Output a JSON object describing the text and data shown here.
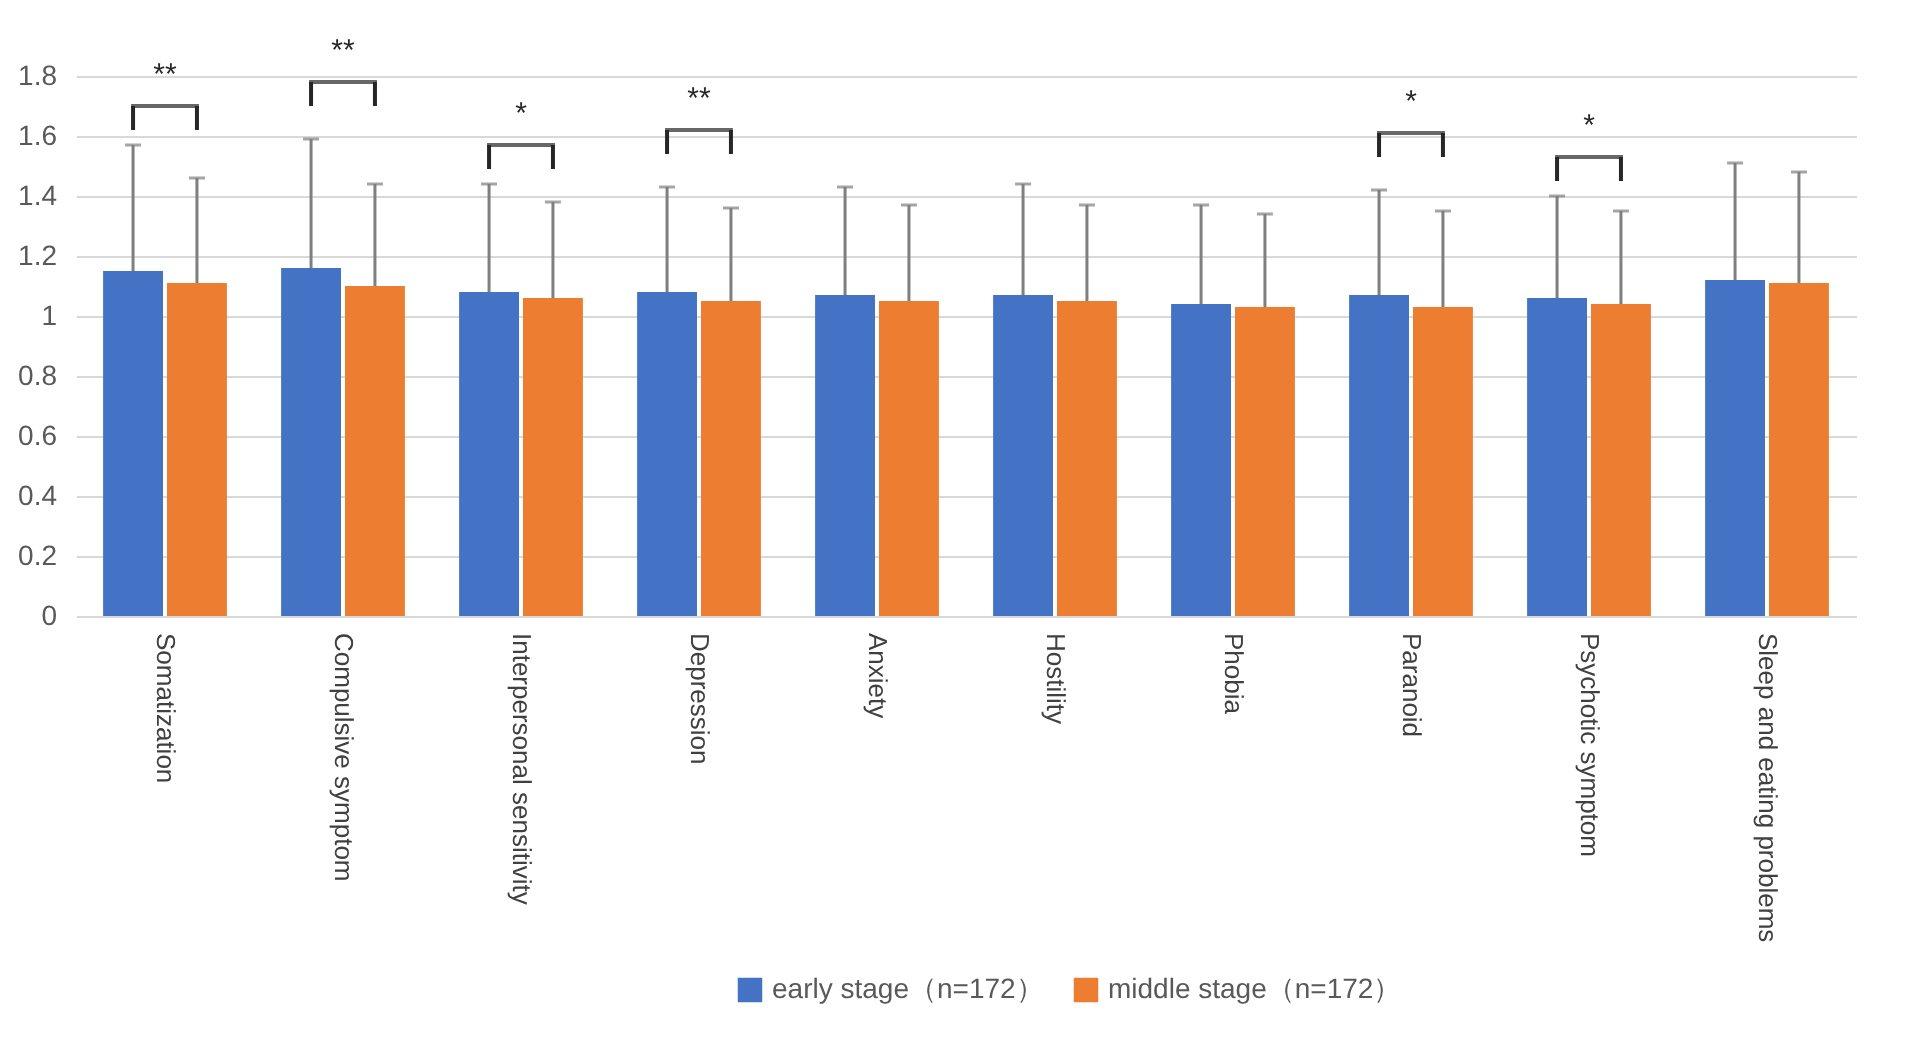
{
  "chart_data": {
    "type": "bar",
    "categories": [
      "Somatization",
      "Compulsive symptom",
      "Interpersonal sensitivity",
      "Depression",
      "Anxiety",
      "Hostility",
      "Phobia",
      "Paranoid",
      "Psychotic symptom",
      "Sleep and eating problems"
    ],
    "series": [
      {
        "name": "early stage（n=172）",
        "color": "#4472c4",
        "values": [
          1.15,
          1.16,
          1.08,
          1.08,
          1.07,
          1.07,
          1.04,
          1.07,
          1.06,
          1.12
        ],
        "errors": [
          0.42,
          0.43,
          0.36,
          0.35,
          0.36,
          0.37,
          0.33,
          0.35,
          0.34,
          0.39
        ]
      },
      {
        "name": "middle stage（n=172）",
        "color": "#ed7d31",
        "values": [
          1.11,
          1.1,
          1.06,
          1.05,
          1.05,
          1.05,
          1.03,
          1.03,
          1.04,
          1.11
        ],
        "errors": [
          0.35,
          0.34,
          0.32,
          0.31,
          0.32,
          0.32,
          0.31,
          0.32,
          0.31,
          0.37
        ]
      }
    ],
    "ylim": [
      0,
      1.8
    ],
    "yticks": [
      0,
      0.2,
      0.4,
      0.6,
      0.8,
      1,
      1.2,
      1.4,
      1.6,
      1.8
    ],
    "grid": "y",
    "legend": "bottom",
    "annotations": [
      "**",
      "**",
      "*",
      "**",
      "*",
      "*"
    ]
  }
}
